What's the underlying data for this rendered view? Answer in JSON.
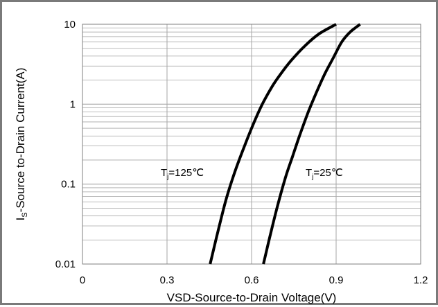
{
  "chart_data": {
    "type": "line",
    "xlabel": "VSD-Source-to-Drain Voltage(V)",
    "ylabel": "I_S-Source  to-Drain Current(A)",
    "ylabel_parts": {
      "main": "I",
      "sub": "S",
      "rest": "-Source  to-Drain Current(A)"
    },
    "xlim": [
      0,
      1.2
    ],
    "ylim": [
      0.01,
      10
    ],
    "y_scale": "log",
    "x_ticks": [
      0,
      0.3,
      0.6,
      0.9,
      1.2
    ],
    "x_tick_labels": [
      "0",
      "0.3",
      "0.6",
      "0.9",
      "1.2"
    ],
    "y_ticks": [
      0.01,
      0.1,
      1,
      10
    ],
    "y_tick_labels": [
      "0.01",
      "0.1",
      "1",
      "10"
    ],
    "grid": true,
    "line_color": "#000000",
    "grid_color": "#a6a6a6",
    "series": [
      {
        "name": "Tj=125℃",
        "label_parts": {
          "main": "T",
          "sub": "j",
          "rest": "=125℃"
        },
        "x": [
          0.453,
          0.48,
          0.51,
          0.54,
          0.57,
          0.6,
          0.635,
          0.67,
          0.7,
          0.74,
          0.79,
          0.84,
          0.9
        ],
        "y": [
          0.01,
          0.025,
          0.065,
          0.14,
          0.27,
          0.5,
          0.95,
          1.6,
          2.3,
          3.5,
          5.4,
          7.6,
          10
        ]
      },
      {
        "name": "Tj=25℃",
        "label_parts": {
          "main": "T",
          "sub": "j",
          "rest": "=25℃"
        },
        "x": [
          0.642,
          0.665,
          0.69,
          0.72,
          0.745,
          0.77,
          0.8,
          0.83,
          0.86,
          0.89,
          0.92,
          0.95,
          0.985
        ],
        "y": [
          0.01,
          0.022,
          0.05,
          0.12,
          0.22,
          0.4,
          0.78,
          1.4,
          2.4,
          3.8,
          6.0,
          8.0,
          10
        ]
      }
    ]
  }
}
